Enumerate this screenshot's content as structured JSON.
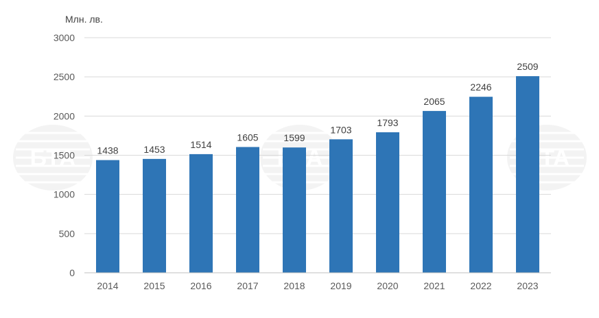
{
  "chart_data": {
    "type": "bar",
    "title": "",
    "xlabel": "",
    "ylabel": "Млн. лв.",
    "categories": [
      "2014",
      "2015",
      "2016",
      "2017",
      "2018",
      "2019",
      "2020",
      "2021",
      "2022",
      "2023"
    ],
    "values": [
      1438,
      1453,
      1514,
      1605,
      1599,
      1703,
      1793,
      2065,
      2246,
      2509
    ],
    "ylim": [
      0,
      3000
    ],
    "yticks": [
      0,
      500,
      1000,
      1500,
      2000,
      2500,
      3000
    ],
    "grid": true,
    "legend": "none",
    "bar_color": "#2e75b6",
    "data_labels": true,
    "watermark": "БТА"
  }
}
